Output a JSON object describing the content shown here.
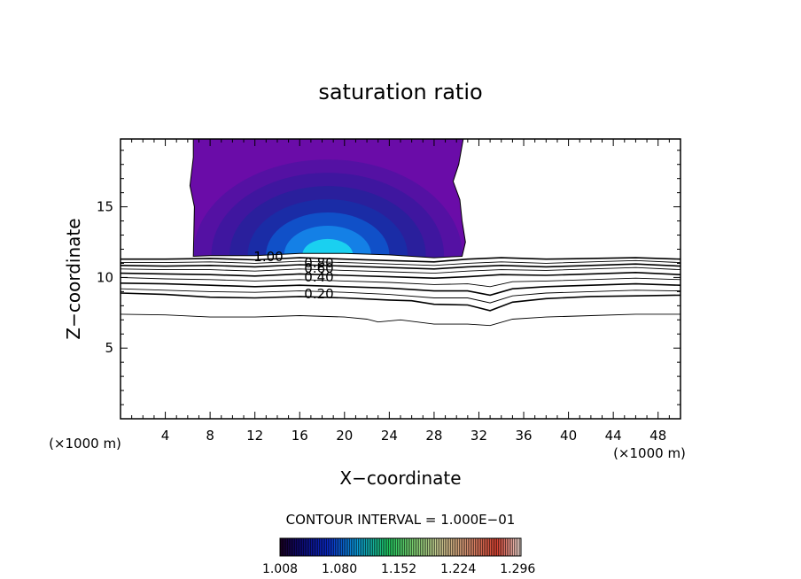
{
  "chart_data": {
    "type": "contour",
    "title": "saturation ratio",
    "xlabel": "X−coordinate",
    "ylabel": "Z−coordinate",
    "x_unit_label": "(×1000 m)",
    "y_unit_label": "(×1000 m)",
    "xlim": [
      0,
      50
    ],
    "ylim": [
      0,
      19.8
    ],
    "x_ticks": [
      4,
      8,
      12,
      16,
      20,
      24,
      28,
      32,
      36,
      40,
      44,
      48
    ],
    "y_ticks": [
      5,
      10,
      15
    ],
    "contour_interval_label": "CONTOUR INTERVAL = 1.000E−01",
    "contour_labels": [
      "1.00",
      "0.80",
      "0.60",
      "0.40",
      "0.20"
    ],
    "colorbar_labels": [
      "1.008",
      "1.080",
      "1.152",
      "1.224",
      "1.296"
    ],
    "colorbar_range": [
      1.008,
      1.3
    ],
    "contour_levels": [
      {
        "value": 1.0,
        "weight": "thick",
        "points": [
          [
            0,
            11.3
          ],
          [
            4,
            11.3
          ],
          [
            8,
            11.35
          ],
          [
            12,
            11.25
          ],
          [
            16,
            11.4
          ],
          [
            20,
            11.3
          ],
          [
            24,
            11.2
          ],
          [
            28,
            11.1
          ],
          [
            31,
            11.3
          ],
          [
            34,
            11.4
          ],
          [
            38,
            11.3
          ],
          [
            42,
            11.35
          ],
          [
            46,
            11.4
          ],
          [
            50,
            11.3
          ]
        ]
      },
      {
        "value": 0.9,
        "weight": "thin",
        "points": [
          [
            0,
            11.05
          ],
          [
            4,
            11.05
          ],
          [
            8,
            11.1
          ],
          [
            12,
            11.0
          ],
          [
            16,
            11.15
          ],
          [
            20,
            11.05
          ],
          [
            24,
            10.95
          ],
          [
            28,
            10.85
          ],
          [
            31,
            11.0
          ],
          [
            34,
            11.1
          ],
          [
            38,
            11.0
          ],
          [
            42,
            11.1
          ],
          [
            46,
            11.2
          ],
          [
            50,
            11.05
          ]
        ]
      },
      {
        "value": 0.8,
        "weight": "thick",
        "points": [
          [
            0,
            10.85
          ],
          [
            4,
            10.8
          ],
          [
            8,
            10.85
          ],
          [
            12,
            10.75
          ],
          [
            16,
            10.9
          ],
          [
            20,
            10.8
          ],
          [
            24,
            10.7
          ],
          [
            28,
            10.6
          ],
          [
            31,
            10.75
          ],
          [
            34,
            10.85
          ],
          [
            38,
            10.75
          ],
          [
            42,
            10.85
          ],
          [
            46,
            10.95
          ],
          [
            50,
            10.8
          ]
        ]
      },
      {
        "value": 0.7,
        "weight": "thin",
        "points": [
          [
            0,
            10.6
          ],
          [
            4,
            10.55
          ],
          [
            8,
            10.55
          ],
          [
            12,
            10.45
          ],
          [
            16,
            10.6
          ],
          [
            20,
            10.5
          ],
          [
            24,
            10.4
          ],
          [
            28,
            10.3
          ],
          [
            31,
            10.45
          ],
          [
            34,
            10.55
          ],
          [
            38,
            10.5
          ],
          [
            42,
            10.6
          ],
          [
            46,
            10.7
          ],
          [
            50,
            10.55
          ]
        ]
      },
      {
        "value": 0.6,
        "weight": "thick",
        "points": [
          [
            0,
            10.3
          ],
          [
            4,
            10.25
          ],
          [
            8,
            10.2
          ],
          [
            12,
            10.1
          ],
          [
            16,
            10.25
          ],
          [
            20,
            10.15
          ],
          [
            24,
            10.05
          ],
          [
            28,
            9.95
          ],
          [
            31,
            10.05
          ],
          [
            34,
            10.2
          ],
          [
            38,
            10.15
          ],
          [
            42,
            10.25
          ],
          [
            46,
            10.35
          ],
          [
            50,
            10.2
          ]
        ]
      },
      {
        "value": 0.5,
        "weight": "thin",
        "points": [
          [
            0,
            10.0
          ],
          [
            4,
            9.9
          ],
          [
            8,
            9.85
          ],
          [
            12,
            9.75
          ],
          [
            16,
            9.85
          ],
          [
            20,
            9.75
          ],
          [
            24,
            9.65
          ],
          [
            28,
            9.5
          ],
          [
            31,
            9.55
          ],
          [
            33,
            9.35
          ],
          [
            35,
            9.7
          ],
          [
            38,
            9.75
          ],
          [
            42,
            9.85
          ],
          [
            46,
            9.95
          ],
          [
            50,
            9.85
          ]
        ]
      },
      {
        "value": 0.4,
        "weight": "thick",
        "points": [
          [
            0,
            9.6
          ],
          [
            4,
            9.55
          ],
          [
            8,
            9.45
          ],
          [
            12,
            9.35
          ],
          [
            16,
            9.45
          ],
          [
            20,
            9.35
          ],
          [
            24,
            9.25
          ],
          [
            28,
            9.05
          ],
          [
            31,
            9.05
          ],
          [
            33,
            8.75
          ],
          [
            35,
            9.2
          ],
          [
            38,
            9.35
          ],
          [
            42,
            9.45
          ],
          [
            46,
            9.55
          ],
          [
            50,
            9.45
          ]
        ]
      },
      {
        "value": 0.3,
        "weight": "thin",
        "points": [
          [
            0,
            9.2
          ],
          [
            4,
            9.1
          ],
          [
            8,
            9.0
          ],
          [
            12,
            8.95
          ],
          [
            16,
            9.05
          ],
          [
            20,
            8.95
          ],
          [
            24,
            8.8
          ],
          [
            28,
            8.55
          ],
          [
            31,
            8.55
          ],
          [
            33,
            8.2
          ],
          [
            35,
            8.7
          ],
          [
            38,
            8.9
          ],
          [
            42,
            9.0
          ],
          [
            46,
            9.1
          ],
          [
            50,
            9.05
          ]
        ]
      },
      {
        "value": 0.2,
        "weight": "thick",
        "points": [
          [
            0,
            8.9
          ],
          [
            4,
            8.8
          ],
          [
            8,
            8.6
          ],
          [
            12,
            8.55
          ],
          [
            16,
            8.65
          ],
          [
            20,
            8.55
          ],
          [
            24,
            8.4
          ],
          [
            26,
            8.35
          ],
          [
            28,
            8.1
          ],
          [
            31,
            8.05
          ],
          [
            33,
            7.65
          ],
          [
            35,
            8.25
          ],
          [
            38,
            8.5
          ],
          [
            42,
            8.65
          ],
          [
            46,
            8.7
          ],
          [
            50,
            8.75
          ]
        ]
      },
      {
        "value": 0.1,
        "weight": "thin",
        "points": [
          [
            0,
            7.4
          ],
          [
            4,
            7.35
          ],
          [
            8,
            7.2
          ],
          [
            12,
            7.2
          ],
          [
            16,
            7.3
          ],
          [
            20,
            7.2
          ],
          [
            22,
            7.05
          ],
          [
            23,
            6.85
          ],
          [
            25,
            7.0
          ],
          [
            28,
            6.7
          ],
          [
            31,
            6.7
          ],
          [
            33,
            6.6
          ],
          [
            35,
            7.05
          ],
          [
            38,
            7.2
          ],
          [
            42,
            7.3
          ],
          [
            46,
            7.4
          ],
          [
            50,
            7.4
          ]
        ]
      }
    ],
    "saturated_region": {
      "outline": [
        [
          6.5,
          19.8
        ],
        [
          6.5,
          18.5
        ],
        [
          6.2,
          16.5
        ],
        [
          6.6,
          15.0
        ],
        [
          6.5,
          11.5
        ],
        [
          8,
          11.55
        ],
        [
          12,
          11.55
        ],
        [
          16,
          11.7
        ],
        [
          20,
          11.7
        ],
        [
          24,
          11.6
        ],
        [
          28,
          11.4
        ],
        [
          30.5,
          11.5
        ],
        [
          30.8,
          12.5
        ],
        [
          30.5,
          14.0
        ],
        [
          30.3,
          15.5
        ],
        [
          29.7,
          16.8
        ],
        [
          30.2,
          18.0
        ],
        [
          30.6,
          19.8
        ]
      ],
      "fill_colors": [
        "#6a0ca8",
        "#5411a3",
        "#3f169f",
        "#2a1f9c",
        "#1a2ca6",
        "#1050c8",
        "#1480e6",
        "#1ad0f0"
      ]
    }
  }
}
